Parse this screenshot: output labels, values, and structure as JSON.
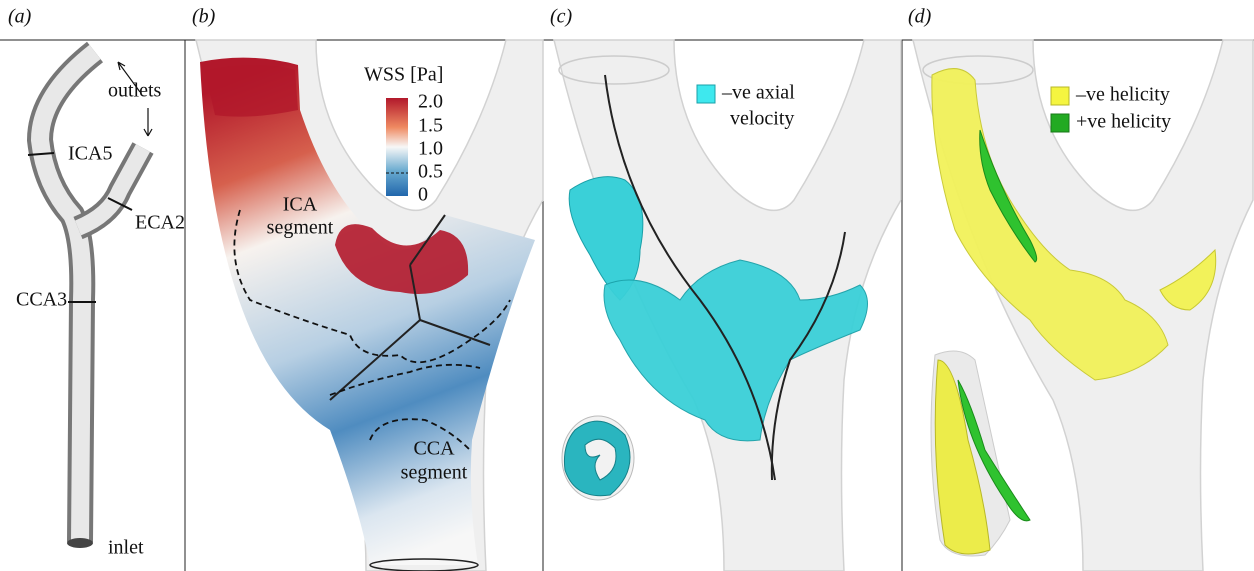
{
  "panels": [
    {
      "label": "(a)",
      "annotations": {
        "outlets": "outlets",
        "ica": "ICA5",
        "eca": "ECA2",
        "cca": "CCA3",
        "inlet": "inlet"
      }
    },
    {
      "label": "(b)",
      "colorbar": {
        "title": "WSS [Pa]",
        "ticks": [
          "2.0",
          "1.5",
          "1.0",
          "0.5",
          "0"
        ]
      },
      "annotations": {
        "ica_segment": [
          "ICA",
          "segment"
        ],
        "cca_segment": [
          "CCA",
          "segment"
        ]
      }
    },
    {
      "label": "(c)",
      "legend": [
        [
          "–ve axial",
          "velocity"
        ]
      ]
    },
    {
      "label": "(d)",
      "legend": [
        "–ve helicity",
        "+ve helicity"
      ]
    }
  ]
}
